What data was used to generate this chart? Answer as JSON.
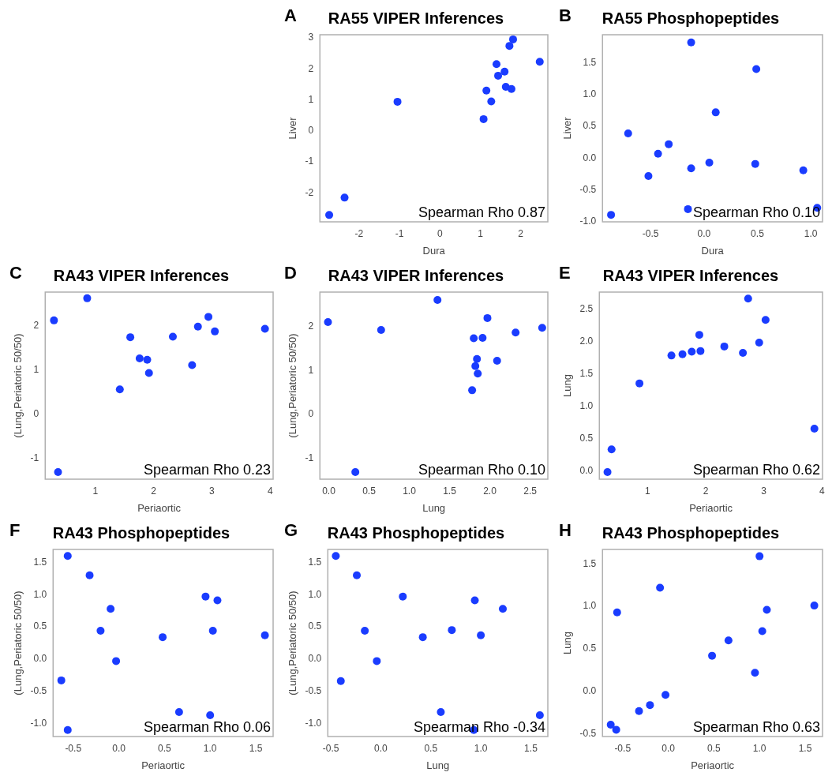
{
  "chart_data": [
    {
      "type": "scatter",
      "title": "RA55 VIPER Inferences",
      "xlabel": "Dura",
      "ylabel": "Liver",
      "annotations": [
        "A",
        "Spearman Rho 0.87"
      ],
      "marker": "circle",
      "xlim": [
        -2.97,
        2.67
      ],
      "ylim": [
        -2.93,
        3.1
      ],
      "xticks": [
        -2,
        -1,
        0,
        1,
        2
      ],
      "yticks": [
        -2,
        -1,
        0,
        1,
        2,
        3
      ],
      "x": [
        -2.74,
        -2.36,
        -1.05,
        1.08,
        1.27,
        1.15,
        1.4,
        1.44,
        1.6,
        1.63,
        1.77,
        1.72,
        1.81,
        2.47
      ],
      "series": [
        {
          "color": "#1a3cff",
          "values": [
            -2.71,
            -2.15,
            0.94,
            0.38,
            0.95,
            1.3,
            2.15,
            1.78,
            1.91,
            1.42,
            1.35,
            2.74,
            2.95,
            2.23
          ]
        }
      ]
    },
    {
      "type": "scatter",
      "title": "RA55 Phosphopeptides",
      "xlabel": "Dura",
      "ylabel": "Liver",
      "annotations": [
        "B",
        "Spearman Rho 0.10"
      ],
      "marker": "circle",
      "xlim": [
        -0.95,
        1.11
      ],
      "ylim": [
        -1.0,
        1.94
      ],
      "xticks": [
        {
          "value": -0.5,
          "label": "-0.5"
        },
        {
          "value": 0,
          "label": "0.0"
        },
        {
          "value": 0.5,
          "label": "0.5"
        },
        {
          "value": 1,
          "label": "1.0"
        }
      ],
      "yticks": [
        {
          "value": -1,
          "label": "-1.0"
        },
        {
          "value": -0.5,
          "label": "-0.5"
        },
        {
          "value": 0,
          "label": "0.0"
        },
        {
          "value": 0.5,
          "label": "0.5"
        },
        {
          "value": 1,
          "label": "1.0"
        },
        {
          "value": 1.5,
          "label": "1.5"
        }
      ],
      "x": [
        -0.87,
        -0.71,
        -0.52,
        -0.43,
        -0.33,
        -0.15,
        -0.12,
        -0.12,
        0.05,
        0.11,
        0.48,
        0.49,
        0.93,
        1.06
      ],
      "series": [
        {
          "color": "#1a3cff",
          "values": [
            -0.89,
            0.39,
            -0.28,
            0.07,
            0.22,
            -0.8,
            -0.16,
            1.82,
            -0.07,
            0.72,
            -0.09,
            1.4,
            -0.19,
            -0.78
          ]
        }
      ]
    },
    {
      "type": "scatter",
      "title": "RA43 VIPER Inferences",
      "xlabel": "Periaortic",
      "ylabel": "(Lung,Periatoric 50/50)",
      "annotations": [
        "C",
        "Spearman Rho 0.23"
      ],
      "marker": "circle",
      "xlim": [
        0.14,
        4.05
      ],
      "ylim": [
        -1.47,
        2.76
      ],
      "xticks": [
        1,
        2,
        3,
        4
      ],
      "yticks": [
        -1,
        0,
        1,
        2
      ],
      "x": [
        0.29,
        0.36,
        0.86,
        1.42,
        1.6,
        1.76,
        1.89,
        1.92,
        2.33,
        2.66,
        2.76,
        2.94,
        3.05,
        3.91
      ],
      "series": [
        {
          "color": "#1a3cff",
          "values": [
            2.12,
            -1.31,
            2.62,
            0.56,
            1.74,
            1.26,
            1.23,
            0.93,
            1.75,
            1.11,
            1.98,
            2.2,
            1.87,
            1.93
          ]
        }
      ]
    },
    {
      "type": "scatter",
      "title": "RA43 VIPER Inferences",
      "xlabel": "Lung",
      "ylabel": "(Lung,Periatoric 50/50)",
      "annotations": [
        "D",
        "Spearman Rho 0.10"
      ],
      "marker": "circle",
      "xlim": [
        -0.11,
        2.72
      ],
      "ylim": [
        -1.47,
        2.78
      ],
      "xticks": [
        {
          "value": 0,
          "label": "0.0"
        },
        {
          "value": 0.5,
          "label": "0.5"
        },
        {
          "value": 1,
          "label": "1.0"
        },
        {
          "value": 1.5,
          "label": "1.5"
        },
        {
          "value": 2,
          "label": "2.0"
        },
        {
          "value": 2.5,
          "label": "2.5"
        }
      ],
      "yticks": [
        -1,
        0,
        1,
        2
      ],
      "x": [
        -0.01,
        0.33,
        0.65,
        1.35,
        1.78,
        1.8,
        1.82,
        1.84,
        1.85,
        1.91,
        1.97,
        2.09,
        2.32,
        2.65
      ],
      "series": [
        {
          "color": "#1a3cff",
          "values": [
            2.1,
            -1.31,
            1.92,
            2.6,
            0.55,
            1.73,
            1.1,
            1.26,
            0.93,
            1.74,
            2.19,
            1.22,
            1.86,
            1.97
          ]
        }
      ]
    },
    {
      "type": "scatter",
      "title": "RA43 VIPER Inferences",
      "xlabel": "Periaortic",
      "ylabel": "Lung",
      "annotations": [
        "E",
        "Spearman Rho 0.62"
      ],
      "marker": "circle",
      "xlim": [
        0.17,
        4.01
      ],
      "ylim": [
        -0.13,
        2.76
      ],
      "xticks": [
        1,
        2,
        3,
        4
      ],
      "yticks": [
        {
          "value": 0,
          "label": "0.0"
        },
        {
          "value": 0.5,
          "label": "0.5"
        },
        {
          "value": 1,
          "label": "1.0"
        },
        {
          "value": 1.5,
          "label": "1.5"
        },
        {
          "value": 2,
          "label": "2.0"
        },
        {
          "value": 2.5,
          "label": "2.5"
        }
      ],
      "x": [
        0.31,
        0.38,
        0.86,
        1.41,
        1.6,
        1.76,
        1.89,
        1.91,
        2.32,
        2.64,
        2.73,
        2.92,
        3.03,
        3.87
      ],
      "series": [
        {
          "color": "#1a3cff",
          "values": [
            -0.02,
            0.33,
            1.35,
            1.78,
            1.8,
            1.84,
            2.1,
            1.85,
            1.92,
            1.82,
            2.66,
            1.98,
            2.33,
            0.65
          ]
        }
      ]
    },
    {
      "type": "scatter",
      "title": "RA43 Phosphopeptides",
      "xlabel": "Periaortic",
      "ylabel": "(Lung,Periatoric 50/50)",
      "annotations": [
        "F",
        "Spearman Rho 0.06"
      ],
      "marker": "circle",
      "xlim": [
        -0.72,
        1.69
      ],
      "ylim": [
        -1.2,
        1.7
      ],
      "xticks": [
        {
          "value": -0.5,
          "label": "-0.5"
        },
        {
          "value": 0,
          "label": "0.0"
        },
        {
          "value": 0.5,
          "label": "0.5"
        },
        {
          "value": 1,
          "label": "1.0"
        },
        {
          "value": 1.5,
          "label": "1.5"
        }
      ],
      "yticks": [
        {
          "value": -1,
          "label": "-1.0"
        },
        {
          "value": -0.5,
          "label": "-0.5"
        },
        {
          "value": 0,
          "label": "0.0"
        },
        {
          "value": 0.5,
          "label": "0.5"
        },
        {
          "value": 1,
          "label": "1.0"
        },
        {
          "value": 1.5,
          "label": "1.5"
        }
      ],
      "x": [
        -0.63,
        -0.56,
        -0.56,
        -0.32,
        -0.2,
        -0.09,
        -0.03,
        0.48,
        0.66,
        0.95,
        1.03,
        1.08,
        1.0,
        1.6
      ],
      "series": [
        {
          "color": "#1a3cff",
          "values": [
            -0.33,
            1.6,
            -1.1,
            1.3,
            0.44,
            0.78,
            -0.03,
            0.34,
            -0.82,
            0.97,
            0.44,
            0.91,
            -0.87,
            0.37
          ]
        }
      ]
    },
    {
      "type": "scatter",
      "title": "RA43 Phosphopeptides",
      "xlabel": "Lung",
      "ylabel": "(Lung,Periatoric 50/50)",
      "annotations": [
        "G",
        "Spearman Rho -0.34"
      ],
      "marker": "circle",
      "xlim": [
        -0.53,
        1.67
      ],
      "ylim": [
        -1.2,
        1.7
      ],
      "xticks": [
        {
          "value": -0.5,
          "label": "-0.5"
        },
        {
          "value": 0,
          "label": "0.0"
        },
        {
          "value": 0.5,
          "label": "0.5"
        },
        {
          "value": 1,
          "label": "1.0"
        },
        {
          "value": 1.5,
          "label": "1.5"
        }
      ],
      "yticks": [
        {
          "value": -1,
          "label": "-1.0"
        },
        {
          "value": -0.5,
          "label": "-0.5"
        },
        {
          "value": 0,
          "label": "0.0"
        },
        {
          "value": 0.5,
          "label": "0.5"
        },
        {
          "value": 1,
          "label": "1.0"
        },
        {
          "value": 1.5,
          "label": "1.5"
        }
      ],
      "x": [
        -0.45,
        -0.4,
        -0.24,
        -0.16,
        -0.04,
        0.22,
        0.42,
        0.6,
        0.71,
        0.94,
        0.93,
        1.0,
        1.22,
        1.59
      ],
      "series": [
        {
          "color": "#1a3cff",
          "values": [
            1.6,
            -0.34,
            1.3,
            0.44,
            -0.03,
            0.97,
            0.34,
            -0.82,
            0.45,
            0.91,
            -1.1,
            0.37,
            0.78,
            -0.87
          ]
        }
      ]
    },
    {
      "type": "scatter",
      "title": "RA43 Phosphopeptides",
      "xlabel": "Periaortic",
      "ylabel": "Lung",
      "annotations": [
        "H",
        "Spearman Rho 0.63"
      ],
      "marker": "circle",
      "xlim": [
        -0.72,
        1.69
      ],
      "ylim": [
        -0.53,
        1.67
      ],
      "xticks": [
        {
          "value": -0.5,
          "label": "-0.5"
        },
        {
          "value": 0,
          "label": "0.0"
        },
        {
          "value": 0.5,
          "label": "0.5"
        },
        {
          "value": 1,
          "label": "1.0"
        },
        {
          "value": 1.5,
          "label": "1.5"
        }
      ],
      "yticks": [
        {
          "value": -0.5,
          "label": "-0.5"
        },
        {
          "value": 0,
          "label": "0.0"
        },
        {
          "value": 0.5,
          "label": "0.5"
        },
        {
          "value": 1,
          "label": "1.0"
        },
        {
          "value": 1.5,
          "label": "1.5"
        }
      ],
      "x": [
        -0.63,
        -0.57,
        -0.56,
        -0.32,
        -0.2,
        -0.09,
        -0.03,
        0.48,
        0.66,
        0.95,
        1.0,
        1.03,
        1.08,
        1.6
      ],
      "series": [
        {
          "color": "#1a3cff",
          "values": [
            -0.39,
            -0.45,
            0.93,
            -0.23,
            -0.16,
            1.22,
            -0.04,
            0.42,
            0.6,
            0.22,
            1.59,
            0.71,
            0.96,
            1.01
          ]
        }
      ]
    }
  ]
}
